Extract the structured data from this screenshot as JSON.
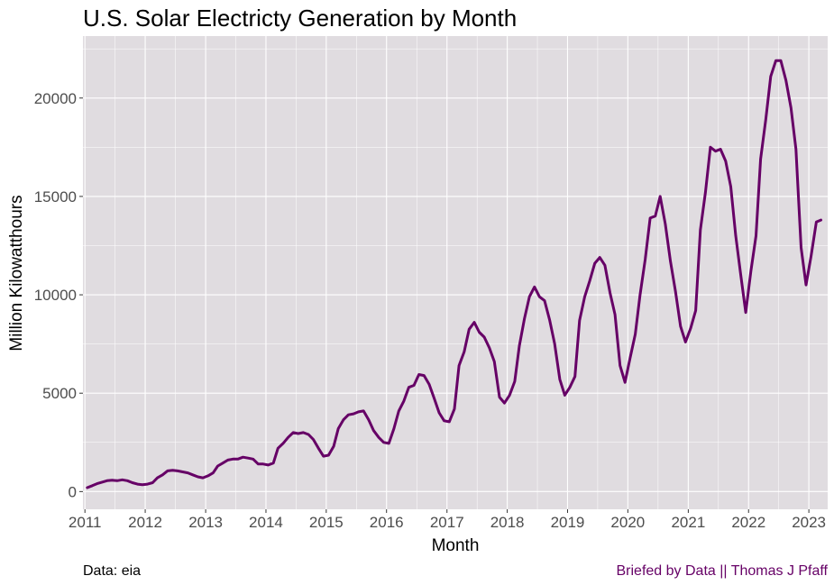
{
  "chart_data": {
    "type": "line",
    "title": "U.S. Solar Electricty Generation by Month",
    "xlabel": "Month",
    "ylabel": "Million Kilowatthours",
    "x_ticks": [
      "2011",
      "2012",
      "2013",
      "2014",
      "2015",
      "2016",
      "2017",
      "2018",
      "2019",
      "2020",
      "2021",
      "2022",
      "2023"
    ],
    "y_ticks": [
      "0",
      "5000",
      "10000",
      "15000",
      "20000"
    ],
    "xlim": [
      "2010-12-20",
      "2023-04-25"
    ],
    "ylim": [
      -900,
      23150
    ],
    "grid": true,
    "legend": "none",
    "series": [
      {
        "color": "#660066",
        "x": [
          "2011-01",
          "2011-02",
          "2011-03",
          "2011-04",
          "2011-05",
          "2011-06",
          "2011-07",
          "2011-08",
          "2011-09",
          "2011-10",
          "2011-11",
          "2011-12",
          "2012-01",
          "2012-02",
          "2012-03",
          "2012-04",
          "2012-05",
          "2012-06",
          "2012-07",
          "2012-08",
          "2012-09",
          "2012-10",
          "2012-11",
          "2012-12",
          "2013-01",
          "2013-02",
          "2013-03",
          "2013-04",
          "2013-05",
          "2013-06",
          "2013-07",
          "2013-08",
          "2013-09",
          "2013-10",
          "2013-11",
          "2013-12",
          "2014-01",
          "2014-02",
          "2014-03",
          "2014-04",
          "2014-05",
          "2014-06",
          "2014-07",
          "2014-08",
          "2014-09",
          "2014-10",
          "2014-11",
          "2014-12",
          "2015-01",
          "2015-02",
          "2015-03",
          "2015-04",
          "2015-05",
          "2015-06",
          "2015-07",
          "2015-08",
          "2015-09",
          "2015-10",
          "2015-11",
          "2015-12",
          "2016-01",
          "2016-02",
          "2016-03",
          "2016-04",
          "2016-05",
          "2016-06",
          "2016-07",
          "2016-08",
          "2016-09",
          "2016-10",
          "2016-11",
          "2016-12",
          "2017-01",
          "2017-02",
          "2017-03",
          "2017-04",
          "2017-05",
          "2017-06",
          "2017-07",
          "2017-08",
          "2017-09",
          "2017-10",
          "2017-11",
          "2017-12",
          "2018-01",
          "2018-02",
          "2018-03",
          "2018-04",
          "2018-05",
          "2018-06",
          "2018-07",
          "2018-08",
          "2018-09",
          "2018-10",
          "2018-11",
          "2018-12",
          "2019-01",
          "2019-02",
          "2019-03",
          "2019-04",
          "2019-05",
          "2019-06",
          "2019-07",
          "2019-08",
          "2019-09",
          "2019-10",
          "2019-11",
          "2019-12",
          "2020-01",
          "2020-02",
          "2020-03",
          "2020-04",
          "2020-05",
          "2020-06",
          "2020-07",
          "2020-08",
          "2020-09",
          "2020-10",
          "2020-11",
          "2020-12",
          "2021-01",
          "2021-02",
          "2021-03",
          "2021-04",
          "2021-05",
          "2021-06",
          "2021-07",
          "2021-08",
          "2021-09",
          "2021-10",
          "2021-11",
          "2021-12",
          "2022-01",
          "2022-02",
          "2022-03",
          "2022-04",
          "2022-05",
          "2022-06",
          "2022-07",
          "2022-08",
          "2022-09",
          "2022-10",
          "2022-11",
          "2022-12",
          "2023-01",
          "2023-02",
          "2023-03"
        ],
        "values": [
          200,
          300,
          400,
          480,
          550,
          580,
          550,
          600,
          550,
          450,
          380,
          350,
          380,
          450,
          700,
          850,
          1050,
          1080,
          1050,
          1000,
          950,
          850,
          750,
          700,
          800,
          950,
          1300,
          1450,
          1600,
          1650,
          1650,
          1750,
          1700,
          1650,
          1400,
          1400,
          1350,
          1450,
          2200,
          2450,
          2750,
          3000,
          2950,
          3000,
          2900,
          2650,
          2200,
          1800,
          1850,
          2300,
          3200,
          3650,
          3900,
          3950,
          4050,
          4100,
          3650,
          3100,
          2750,
          2500,
          2450,
          3200,
          4100,
          4600,
          5300,
          5400,
          5950,
          5900,
          5450,
          4750,
          4000,
          3600,
          3550,
          4200,
          6400,
          7100,
          8250,
          8600,
          8100,
          7850,
          7300,
          6600,
          4800,
          4500,
          4900,
          5600,
          7400,
          8800,
          9900,
          10400,
          9900,
          9700,
          8700,
          7500,
          5700,
          4900,
          5300,
          5850,
          8700,
          9900,
          10700,
          11600,
          11900,
          11500,
          10100,
          9000,
          6400,
          5550,
          6800,
          8000,
          10000,
          11800,
          13900,
          14000,
          15000,
          13600,
          11700,
          10200,
          8400,
          7600,
          8300,
          9200,
          13300,
          15200,
          17500,
          17300,
          17400,
          16800,
          15500,
          13000,
          11000,
          9100,
          11200,
          13000,
          16900,
          18900,
          21100,
          21900,
          21900,
          20900,
          19500,
          17400,
          12400,
          10500,
          12000,
          13700,
          13800
        ]
      }
    ]
  },
  "captions": {
    "source": "Data: eia",
    "credit": "Briefed by Data || Thomas J Pfaff",
    "credit_color": "#660066"
  },
  "colors": {
    "panel_background": "#e0dce0",
    "grid": "#ffffff",
    "line": "#660066"
  }
}
